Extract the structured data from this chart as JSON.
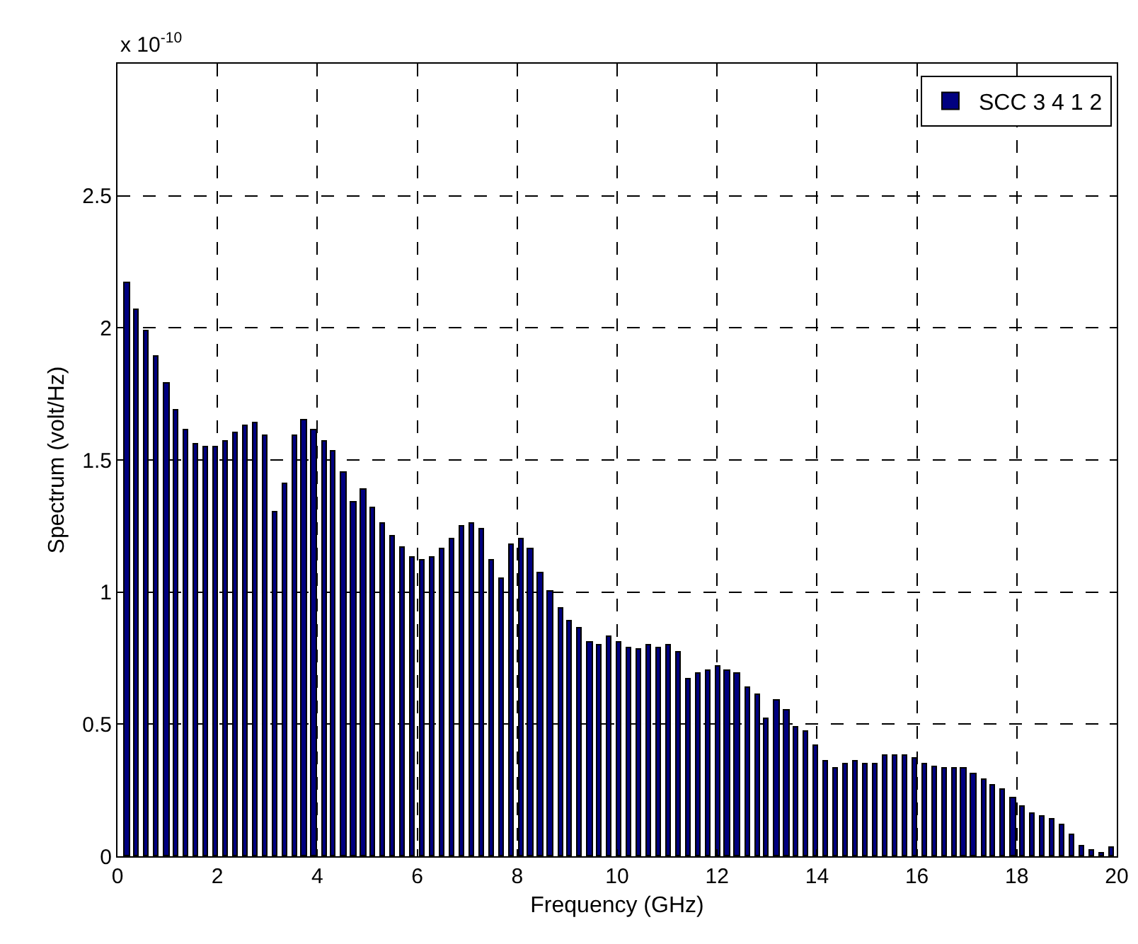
{
  "chart_data": {
    "type": "bar",
    "xlabel": "Frequency (GHz)",
    "ylabel": "Spectrum (volt/Hz)",
    "annotations": [
      "x 10$^{-10}$"
    ],
    "x": [
      0.2,
      0.39,
      0.59,
      0.79,
      0.99,
      1.18,
      1.38,
      1.58,
      1.77,
      1.97,
      2.17,
      2.36,
      2.56,
      2.76,
      2.96,
      3.15,
      3.35,
      3.55,
      3.74,
      3.94,
      4.14,
      4.33,
      4.53,
      4.73,
      4.93,
      5.12,
      5.32,
      5.52,
      5.71,
      5.91,
      6.11,
      6.3,
      6.5,
      6.7,
      6.9,
      7.09,
      7.29,
      7.49,
      7.68,
      7.88,
      8.08,
      8.27,
      8.47,
      8.67,
      8.87,
      9.06,
      9.26,
      9.46,
      9.65,
      9.85,
      10.05,
      10.24,
      10.44,
      10.64,
      10.84,
      11.03,
      11.23,
      11.43,
      11.62,
      11.82,
      12.02,
      12.21,
      12.41,
      12.61,
      12.81,
      13.0,
      13.2,
      13.4,
      13.59,
      13.79,
      13.99,
      14.18,
      14.38,
      14.58,
      14.78,
      14.97,
      15.17,
      15.37,
      15.56,
      15.76,
      15.96,
      16.15,
      16.35,
      16.55,
      16.75,
      16.94,
      17.14,
      17.34,
      17.53,
      17.73,
      17.93,
      18.12,
      18.32,
      18.52,
      18.72,
      18.91,
      19.11,
      19.31,
      19.5,
      19.7,
      19.9
    ],
    "series": [
      {
        "name": "SCC 3 4 1 2",
        "color": "#000080",
        "values": [
          2.17,
          2.07,
          1.99,
          1.89,
          1.79,
          1.69,
          1.61,
          1.56,
          1.55,
          1.55,
          1.57,
          1.6,
          1.63,
          1.64,
          1.59,
          1.3,
          1.41,
          1.59,
          1.65,
          1.61,
          1.57,
          1.53,
          1.45,
          1.34,
          1.39,
          1.32,
          1.26,
          1.21,
          1.17,
          1.13,
          1.12,
          1.13,
          1.16,
          1.2,
          1.25,
          1.26,
          1.24,
          1.12,
          1.05,
          1.18,
          1.2,
          1.16,
          1.07,
          1.0,
          0.94,
          0.89,
          0.86,
          0.81,
          0.8,
          0.83,
          0.81,
          0.79,
          0.78,
          0.8,
          0.79,
          0.8,
          0.77,
          0.67,
          0.69,
          0.7,
          0.72,
          0.7,
          0.69,
          0.64,
          0.61,
          0.52,
          0.59,
          0.55,
          0.49,
          0.47,
          0.42,
          0.36,
          0.33,
          0.35,
          0.36,
          0.35,
          0.35,
          0.38,
          0.38,
          0.38,
          0.37,
          0.35,
          0.34,
          0.33,
          0.33,
          0.33,
          0.31,
          0.29,
          0.27,
          0.25,
          0.22,
          0.19,
          0.16,
          0.15,
          0.14,
          0.12,
          0.08,
          0.04,
          0.02,
          0.01,
          0.03
        ]
      }
    ],
    "xlim": [
      0,
      20
    ],
    "xticks": [
      0,
      2,
      4,
      6,
      8,
      10,
      12,
      14,
      16,
      18,
      20
    ],
    "ylim": [
      0,
      3
    ],
    "yticks": [
      0,
      0.5,
      1,
      1.5,
      2,
      2.5,
      {
        "value": 3,
        "label": null
      }
    ],
    "grid": true,
    "legend": "top right"
  }
}
